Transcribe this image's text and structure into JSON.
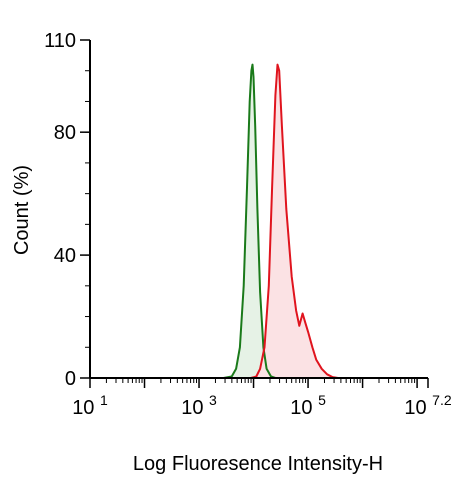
{
  "chart_data": {
    "type": "area",
    "title": "",
    "xlabel": "Log Fluoresence Intensity-H",
    "ylabel": "Count  (%)",
    "x_scale": "log10",
    "xlim": [
      1,
      7.2
    ],
    "ylim": [
      0,
      110
    ],
    "grid": false,
    "legend": "none",
    "x_tick_labels": [
      {
        "value": 1,
        "base": "10",
        "exp": "1"
      },
      {
        "value": 3,
        "base": "10",
        "exp": "3"
      },
      {
        "value": 5,
        "base": "10",
        "exp": "5"
      },
      {
        "value": 7.2,
        "base": "10",
        "exp": "7.2"
      }
    ],
    "y_ticks": [
      0,
      40,
      80,
      110
    ],
    "y_tick_labels": [
      "0",
      "40",
      "80",
      "110"
    ],
    "series": [
      {
        "color": "#1a7a1a",
        "fill": "#e6f2e6",
        "points": [
          [
            3.45,
            0
          ],
          [
            3.6,
            0.5
          ],
          [
            3.68,
            3
          ],
          [
            3.75,
            10
          ],
          [
            3.82,
            30
          ],
          [
            3.88,
            62
          ],
          [
            3.93,
            90
          ],
          [
            3.96,
            100
          ],
          [
            3.98,
            102
          ],
          [
            4.0,
            98
          ],
          [
            4.03,
            82
          ],
          [
            4.07,
            55
          ],
          [
            4.12,
            28
          ],
          [
            4.18,
            10
          ],
          [
            4.24,
            3
          ],
          [
            4.32,
            0.5
          ],
          [
            4.4,
            0
          ]
        ]
      },
      {
        "color": "#e0141e",
        "fill": "#fbe2e4",
        "points": [
          [
            3.95,
            0
          ],
          [
            4.05,
            0.5
          ],
          [
            4.12,
            3
          ],
          [
            4.2,
            10
          ],
          [
            4.28,
            30
          ],
          [
            4.34,
            62
          ],
          [
            4.4,
            92
          ],
          [
            4.44,
            102
          ],
          [
            4.47,
            100
          ],
          [
            4.52,
            82
          ],
          [
            4.6,
            55
          ],
          [
            4.7,
            33
          ],
          [
            4.78,
            22
          ],
          [
            4.84,
            17
          ],
          [
            4.9,
            21
          ],
          [
            4.95,
            18
          ],
          [
            5.0,
            15
          ],
          [
            5.08,
            10
          ],
          [
            5.15,
            6
          ],
          [
            5.25,
            3
          ],
          [
            5.35,
            1.2
          ],
          [
            5.45,
            0.3
          ],
          [
            5.55,
            0
          ]
        ]
      }
    ]
  }
}
